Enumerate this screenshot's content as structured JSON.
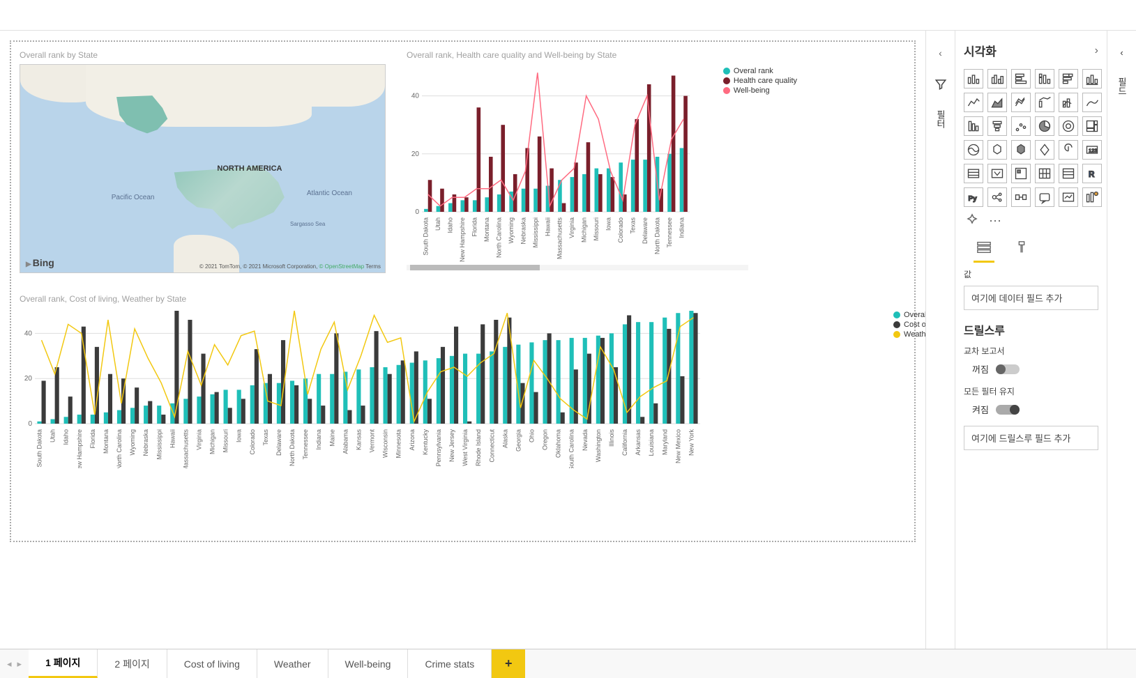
{
  "topbar": {},
  "titles": {
    "map": "Overall rank by State",
    "chart_top": "Overall rank, Health care quality and Well-being by State",
    "chart_bottom": "Overall rank, Cost of living, Weather by State"
  },
  "map": {
    "labels": {
      "na": "NORTH AMERICA",
      "pacific": "Pacific Ocean",
      "atlantic": "Atlantic Ocean",
      "sargasso": "Sargasso Sea"
    },
    "bing": "Bing",
    "attrib1": "© 2021 TomTom, © 2021 Microsoft Corporation, ",
    "attrib2": "© OpenStreetMap",
    "attrib3": " Terms"
  },
  "chart_top": {
    "legend": [
      {
        "label": "Overal rank",
        "color": "#1fbfb8"
      },
      {
        "label": "Health care quality",
        "color": "#7a1f2b"
      },
      {
        "label": "Well-being",
        "color": "#ff6b81"
      }
    ],
    "yticks": [
      0,
      20,
      40
    ],
    "ymax": 50,
    "states": [
      "South Dakota",
      "Utah",
      "Idaho",
      "New Hampshire",
      "Florida",
      "Montana",
      "North Carolina",
      "Wyoming",
      "Nebraska",
      "Mississippi",
      "Hawaii",
      "Massachusetts",
      "Virginia",
      "Michigan",
      "Missouri",
      "Iowa",
      "Colorado",
      "Texas",
      "Delaware",
      "North Dakota",
      "Tennessee",
      "Indiana"
    ],
    "overall": [
      1,
      2,
      3,
      4,
      4,
      5,
      6,
      7,
      8,
      8,
      9,
      11,
      12,
      13,
      15,
      15,
      17,
      18,
      18,
      19,
      20,
      22
    ],
    "healthcare": [
      11,
      8,
      6,
      5,
      36,
      19,
      30,
      13,
      22,
      26,
      15,
      3,
      17,
      24,
      13,
      12,
      6,
      32,
      44,
      8,
      47,
      40
    ],
    "wellbeing": [
      6,
      2,
      5,
      5,
      8,
      8,
      11,
      4,
      14,
      48,
      2,
      11,
      15,
      40,
      32,
      14,
      4,
      30,
      40,
      4,
      25,
      32
    ],
    "colors": {
      "overall": "#1fbfb8",
      "healthcare": "#7a1f2b",
      "wellbeing": "#ff6b81"
    },
    "scrollbar_pct": 38,
    "scrollbar_left_pct": 1
  },
  "chart_bottom": {
    "legend": [
      {
        "label": "Overal rank",
        "color": "#1fbfb8"
      },
      {
        "label": "Cost of living",
        "color": "#3b3b3b"
      },
      {
        "label": "Weather",
        "color": "#f2c811"
      }
    ],
    "yticks": [
      0,
      20,
      40
    ],
    "ymax": 50,
    "states": [
      "South Dakota",
      "Utah",
      "Idaho",
      "New Hampshire",
      "Florida",
      "Montana",
      "North Carolina",
      "Wyoming",
      "Nebraska",
      "Mississippi",
      "Hawaii",
      "Massachusetts",
      "Virginia",
      "Michigan",
      "Missouri",
      "Iowa",
      "Colorado",
      "Texas",
      "Delaware",
      "North Dakota",
      "Tennessee",
      "Indiana",
      "Maine",
      "Alabama",
      "Kansas",
      "Vermont",
      "Wisconsin",
      "Minnesota",
      "Arizona",
      "Kentucky",
      "Pennsylvania",
      "New Jersey",
      "West Virginia",
      "Rhode Island",
      "Connecticut",
      "Alaska",
      "Georgia",
      "Ohio",
      "Oregon",
      "Oklahoma",
      "South Carolina",
      "Nevada",
      "Washington",
      "Illinois",
      "California",
      "Arkansas",
      "Louisiana",
      "Maryland",
      "New Mexico",
      "New York"
    ],
    "overall": [
      1,
      2,
      3,
      4,
      4,
      5,
      6,
      7,
      8,
      8,
      9,
      11,
      12,
      13,
      15,
      15,
      17,
      18,
      18,
      19,
      20,
      22,
      22,
      23,
      24,
      25,
      25,
      26,
      27,
      28,
      29,
      30,
      31,
      31,
      32,
      34,
      35,
      36,
      37,
      37,
      38,
      38,
      39,
      40,
      44,
      45,
      45,
      47,
      49,
      50
    ],
    "cost": [
      19,
      25,
      12,
      43,
      34,
      22,
      20,
      16,
      10,
      4,
      50,
      46,
      31,
      14,
      7,
      11,
      33,
      22,
      37,
      17,
      11,
      8,
      40,
      6,
      8,
      41,
      22,
      28,
      32,
      11,
      34,
      43,
      1,
      44,
      46,
      47,
      18,
      14,
      40,
      5,
      24,
      31,
      38,
      25,
      48,
      3,
      9,
      42,
      21,
      49
    ],
    "weather": [
      37,
      22,
      44,
      40,
      4,
      46,
      9,
      42,
      29,
      18,
      3,
      32,
      17,
      35,
      26,
      39,
      41,
      10,
      8,
      50,
      13,
      33,
      45,
      15,
      30,
      48,
      36,
      38,
      1,
      14,
      23,
      25,
      21,
      27,
      31,
      49,
      7,
      28,
      20,
      11,
      6,
      2,
      34,
      24,
      5,
      12,
      16,
      19,
      43,
      47
    ],
    "colors": {
      "overall": "#1fbfb8",
      "cost": "#3b3b3b",
      "weather": "#f2c811"
    }
  },
  "viz_pane": {
    "title": "시각화",
    "value_label": "값",
    "drop1": "여기에 데이터 필드 추가",
    "drill_h": "드릴스루",
    "cross": "교차 보고서",
    "off": "꺼짐",
    "keep_filters": "모든 필터 유지",
    "on": "켜짐",
    "drop2": "여기에 드릴스루 필드 추가"
  },
  "tabs": {
    "items": [
      "1 페이지",
      "2 페이지",
      "Cost of living",
      "Weather",
      "Well-being",
      "Crime stats"
    ],
    "active": 0
  }
}
